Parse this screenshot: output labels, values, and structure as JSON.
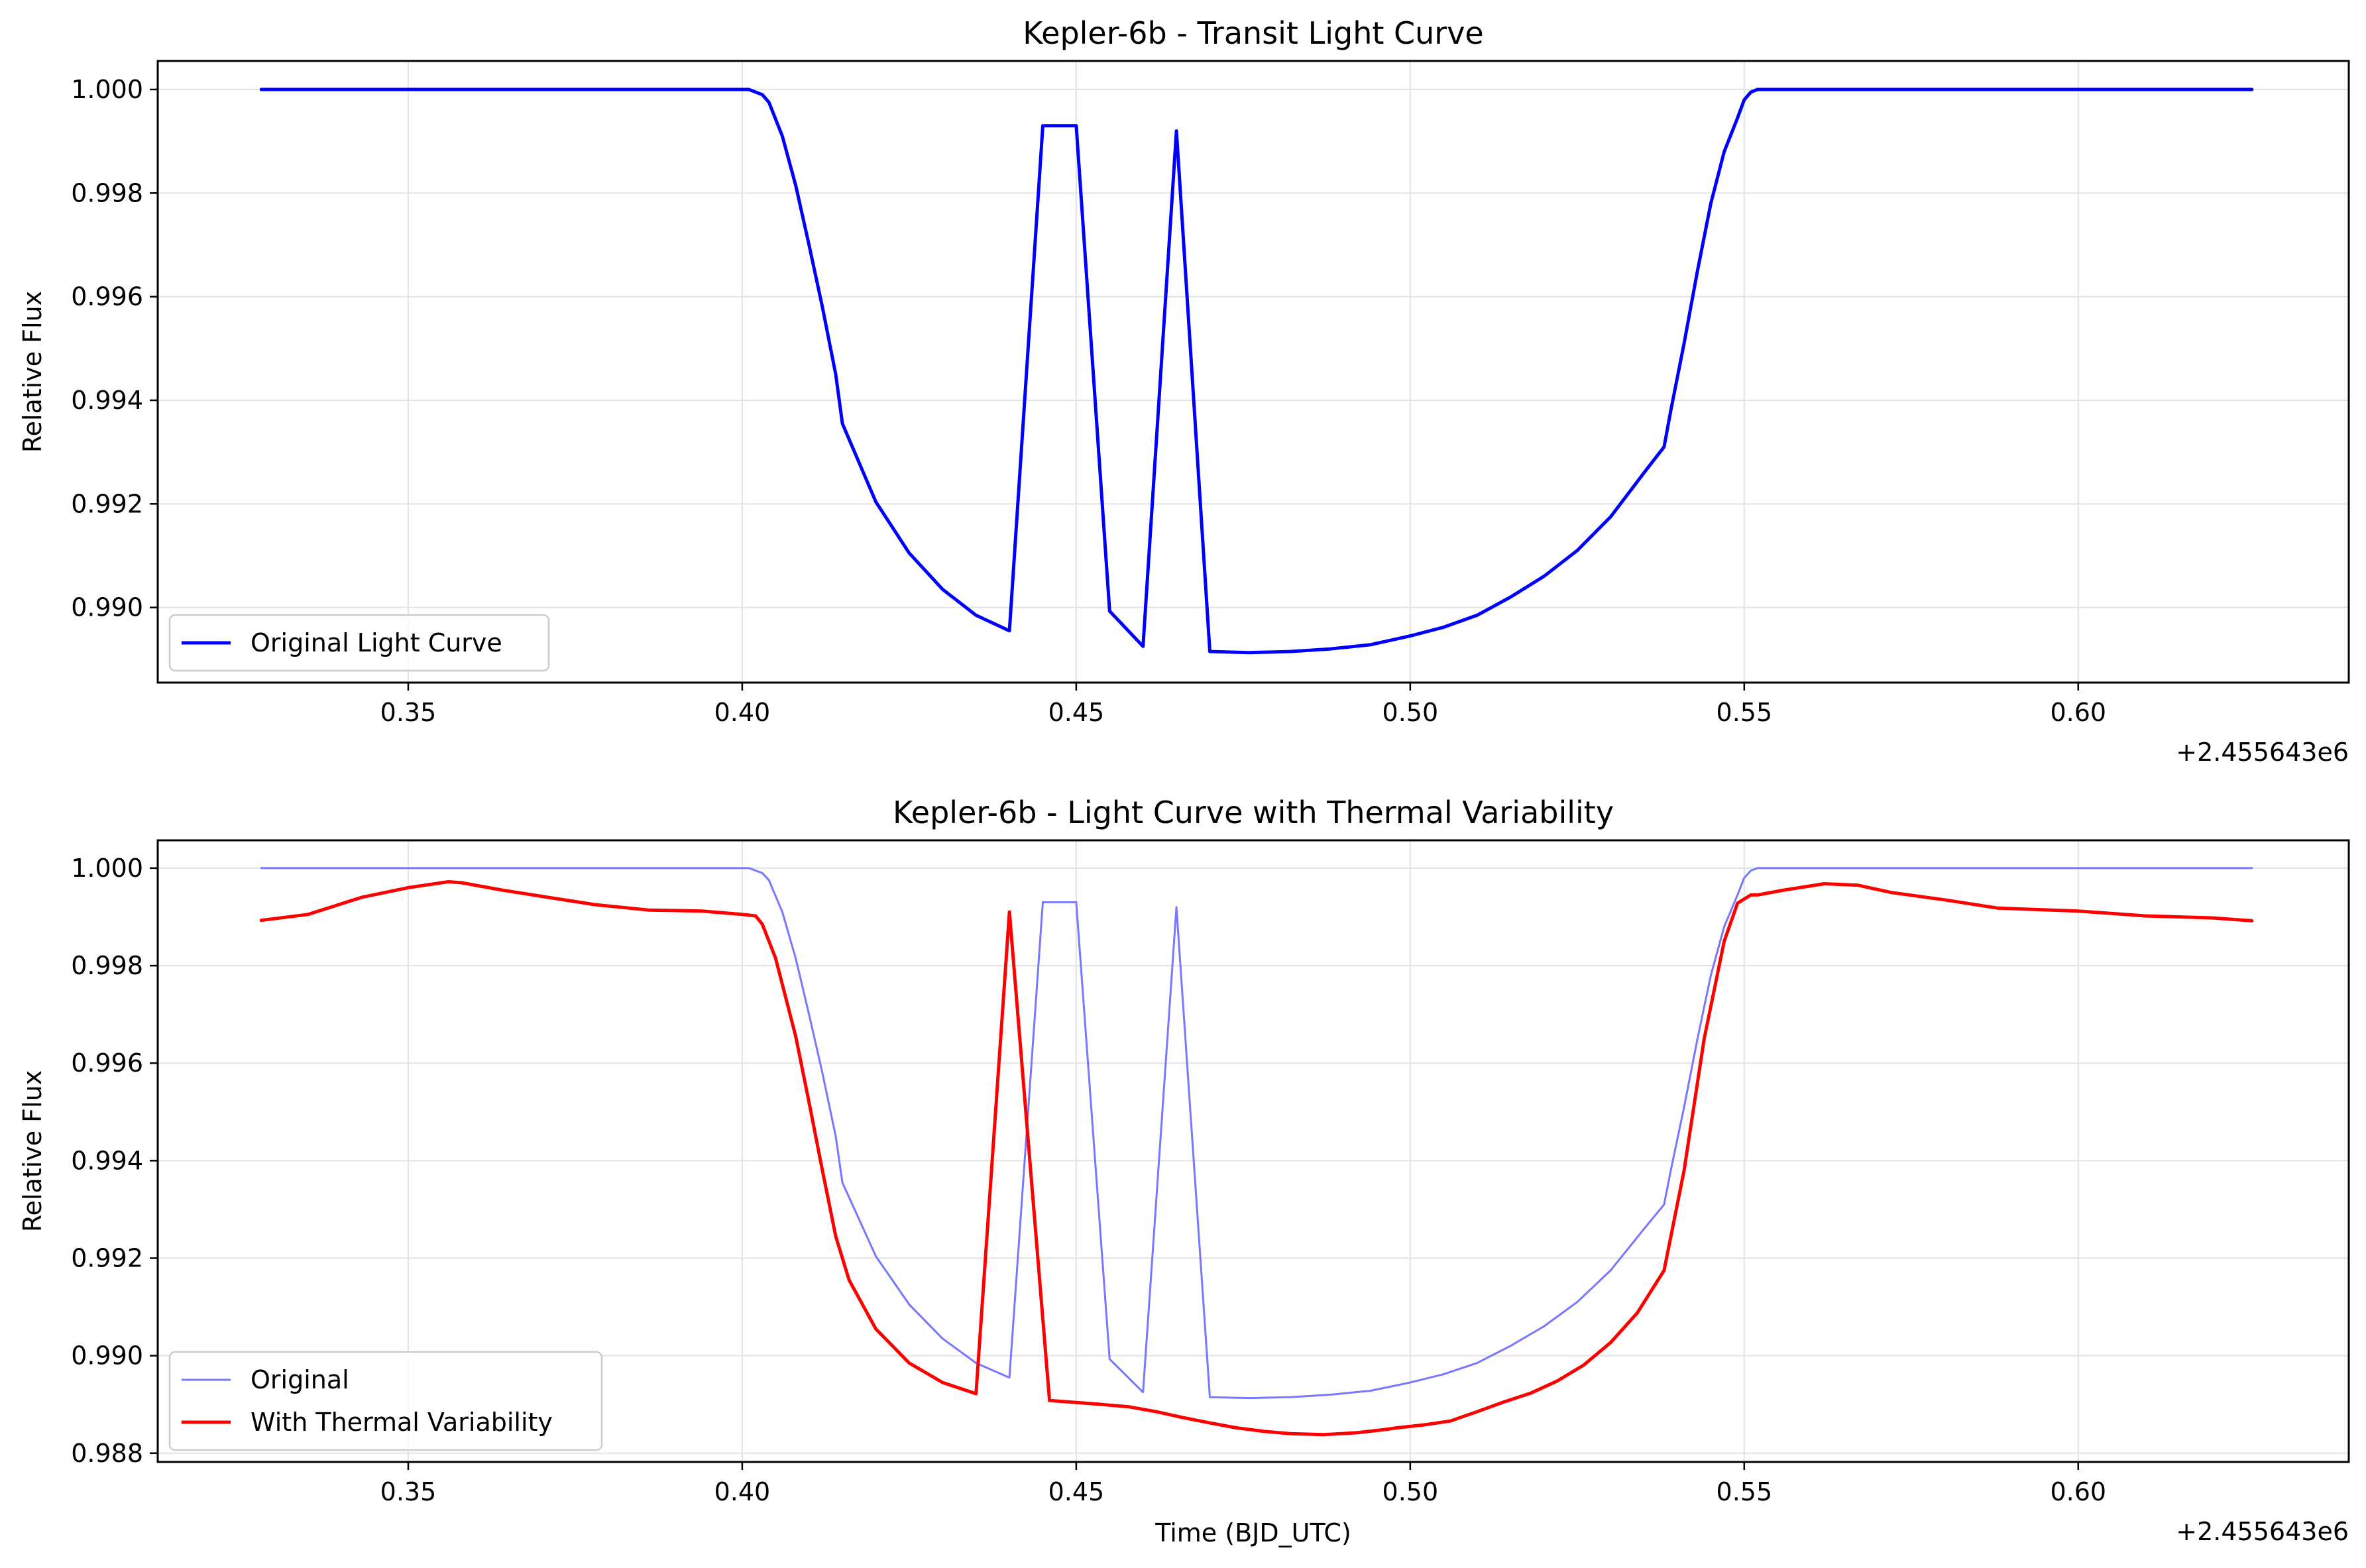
{
  "chart_data": [
    {
      "type": "line",
      "title": "Kepler-6b - Transit Light Curve",
      "xlabel": "",
      "ylabel": "Relative Flux",
      "x_offset_label": "+2.455643e6",
      "xlim": [
        0.3125,
        0.6405
      ],
      "ylim": [
        0.98855,
        1.00055
      ],
      "xticks": [
        0.35,
        0.4,
        0.45,
        0.5,
        0.55,
        0.6
      ],
      "xtick_labels": [
        "0.35",
        "0.40",
        "0.45",
        "0.50",
        "0.55",
        "0.60"
      ],
      "yticks": [
        0.99,
        0.992,
        0.994,
        0.996,
        0.998,
        1.0
      ],
      "ytick_labels": [
        "0.990",
        "0.992",
        "0.994",
        "0.996",
        "0.998",
        "1.000"
      ],
      "grid": true,
      "legend_position": "lower-left",
      "series": [
        {
          "name": "Original Light Curve",
          "color": "#0000ff",
          "x": [
            0.328,
            0.401,
            0.402,
            0.403,
            0.404,
            0.406,
            0.408,
            0.41,
            0.412,
            0.414,
            0.415,
            0.42,
            0.425,
            0.43,
            0.435,
            0.44,
            0.445,
            0.45,
            0.455,
            0.46,
            0.465,
            0.47,
            0.476,
            0.482,
            0.488,
            0.494,
            0.5,
            0.505,
            0.51,
            0.515,
            0.52,
            0.525,
            0.53,
            0.535,
            0.538,
            0.539,
            0.541,
            0.543,
            0.545,
            0.547,
            0.549,
            0.55,
            0.551,
            0.552,
            0.553,
            0.626
          ],
          "y": [
            1.0,
            1.0,
            0.99995,
            0.9999,
            0.99975,
            0.9991,
            0.99815,
            0.997,
            0.9958,
            0.9945,
            0.99355,
            0.99204,
            0.99105,
            0.99035,
            0.98985,
            0.98955,
            0.9993,
            0.9993,
            0.98993,
            0.98925,
            0.9992,
            0.98915,
            0.98913,
            0.98915,
            0.9892,
            0.98928,
            0.98945,
            0.98962,
            0.98985,
            0.9902,
            0.9906,
            0.9911,
            0.99175,
            0.9926,
            0.9931,
            0.9938,
            0.9951,
            0.9965,
            0.9978,
            0.9988,
            0.99945,
            0.9998,
            0.99995,
            1.0,
            1.0,
            1.0
          ]
        }
      ]
    },
    {
      "type": "line",
      "title": "Kepler-6b - Light Curve with Thermal Variability",
      "xlabel": "Time (BJD_UTC)",
      "ylabel": "Relative Flux",
      "x_offset_label": "+2.455643e6",
      "xlim": [
        0.3125,
        0.6405
      ],
      "ylim": [
        0.98782,
        1.00057
      ],
      "xticks": [
        0.35,
        0.4,
        0.45,
        0.5,
        0.55,
        0.6
      ],
      "xtick_labels": [
        "0.35",
        "0.40",
        "0.45",
        "0.50",
        "0.55",
        "0.60"
      ],
      "yticks": [
        0.988,
        0.99,
        0.992,
        0.994,
        0.996,
        0.998,
        1.0
      ],
      "ytick_labels": [
        "0.988",
        "0.990",
        "0.992",
        "0.994",
        "0.996",
        "0.998",
        "1.000"
      ],
      "grid": true,
      "legend_position": "lower-left",
      "series": [
        {
          "name": "Original",
          "color": "#7777ff",
          "x": [
            0.328,
            0.401,
            0.402,
            0.403,
            0.404,
            0.406,
            0.408,
            0.41,
            0.412,
            0.414,
            0.415,
            0.42,
            0.425,
            0.43,
            0.435,
            0.44,
            0.445,
            0.45,
            0.455,
            0.46,
            0.465,
            0.47,
            0.476,
            0.482,
            0.488,
            0.494,
            0.5,
            0.505,
            0.51,
            0.515,
            0.52,
            0.525,
            0.53,
            0.535,
            0.538,
            0.539,
            0.541,
            0.543,
            0.545,
            0.547,
            0.549,
            0.55,
            0.551,
            0.552,
            0.553,
            0.626
          ],
          "y": [
            1.0,
            1.0,
            0.99995,
            0.9999,
            0.99975,
            0.9991,
            0.99815,
            0.997,
            0.9958,
            0.9945,
            0.99355,
            0.99204,
            0.99105,
            0.99035,
            0.98985,
            0.98955,
            0.9993,
            0.9993,
            0.98993,
            0.98925,
            0.9992,
            0.98915,
            0.98913,
            0.98915,
            0.9892,
            0.98928,
            0.98945,
            0.98962,
            0.98985,
            0.9902,
            0.9906,
            0.9911,
            0.99175,
            0.9926,
            0.9931,
            0.9938,
            0.9951,
            0.9965,
            0.9978,
            0.9988,
            0.99945,
            0.9998,
            0.99995,
            1.0,
            1.0,
            1.0
          ]
        },
        {
          "name": "With Thermal Variability",
          "color": "#ff0000",
          "x": [
            0.328,
            0.335,
            0.343,
            0.35,
            0.356,
            0.358,
            0.364,
            0.371,
            0.378,
            0.386,
            0.394,
            0.4,
            0.402,
            0.403,
            0.405,
            0.408,
            0.41,
            0.412,
            0.414,
            0.416,
            0.42,
            0.425,
            0.43,
            0.435,
            0.44,
            0.446,
            0.452,
            0.458,
            0.462,
            0.466,
            0.47,
            0.474,
            0.478,
            0.482,
            0.487,
            0.492,
            0.496,
            0.498,
            0.502,
            0.506,
            0.51,
            0.514,
            0.518,
            0.522,
            0.526,
            0.53,
            0.534,
            0.538,
            0.541,
            0.544,
            0.547,
            0.549,
            0.551,
            0.552,
            0.556,
            0.562,
            0.567,
            0.572,
            0.58,
            0.588,
            0.6,
            0.61,
            0.62,
            0.626
          ],
          "y": [
            0.99893,
            0.99905,
            0.9994,
            0.9996,
            0.99972,
            0.9997,
            0.99955,
            0.9994,
            0.99925,
            0.99914,
            0.99912,
            0.99905,
            0.99902,
            0.99885,
            0.99815,
            0.99655,
            0.9952,
            0.9938,
            0.99245,
            0.99155,
            0.99055,
            0.98985,
            0.98945,
            0.98922,
            0.9991,
            0.98908,
            0.98902,
            0.98895,
            0.98885,
            0.98873,
            0.98862,
            0.98852,
            0.98845,
            0.9884,
            0.98838,
            0.98842,
            0.98848,
            0.98852,
            0.98858,
            0.98866,
            0.98885,
            0.98905,
            0.98923,
            0.98948,
            0.98981,
            0.99027,
            0.99088,
            0.99175,
            0.9938,
            0.9965,
            0.9985,
            0.99928,
            0.99945,
            0.99945,
            0.99955,
            0.99968,
            0.99965,
            0.9995,
            0.99935,
            0.99918,
            0.99912,
            0.99902,
            0.99898,
            0.99892
          ]
        }
      ]
    }
  ]
}
